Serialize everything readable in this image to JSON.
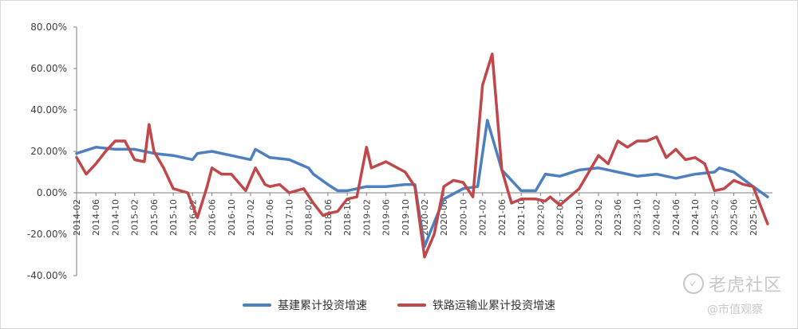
{
  "chart_data": {
    "type": "line",
    "title": "",
    "ylim": [
      -40,
      80
    ],
    "yticks": [
      -40,
      -20,
      0,
      20,
      40,
      60,
      80
    ],
    "ytick_labels": [
      "-40.00%",
      "-20.00%",
      "0.00%",
      "20.00%",
      "40.00%",
      "60.00%",
      "80.00%"
    ],
    "grid": false,
    "legend_position": "bottom",
    "x_start": "2014-02",
    "x_end": "2026-02",
    "x_tick_labels": [
      "2014-02",
      "2014-06",
      "2014-10",
      "2015-02",
      "2015-06",
      "2015-10",
      "2016-02",
      "2016-06",
      "2016-10",
      "2017-02",
      "2017-06",
      "2017-10",
      "2018-02",
      "2018-06",
      "2018-10",
      "2019-02",
      "2019-06",
      "2019-10",
      "2020-02",
      "2020-06",
      "2020-10",
      "2021-02",
      "2021-06",
      "2021-10",
      "2022-02",
      "2022-06",
      "2022-10",
      "2023-02",
      "2023-06",
      "2023-10",
      "2024-02",
      "2024-06",
      "2024-10",
      "2025-02",
      "2025-06",
      "2025-10"
    ],
    "series": [
      {
        "name": "基建累计投资增速",
        "color": "#4e7fbf",
        "points": [
          [
            "2014-02",
            19
          ],
          [
            "2014-06",
            22
          ],
          [
            "2014-10",
            21
          ],
          [
            "2015-02",
            21
          ],
          [
            "2015-06",
            19
          ],
          [
            "2015-10",
            18
          ],
          [
            "2016-02",
            16
          ],
          [
            "2016-03",
            19
          ],
          [
            "2016-06",
            20
          ],
          [
            "2016-10",
            18
          ],
          [
            "2017-02",
            16
          ],
          [
            "2017-03",
            21
          ],
          [
            "2017-06",
            17
          ],
          [
            "2017-10",
            16
          ],
          [
            "2018-02",
            12
          ],
          [
            "2018-03",
            9
          ],
          [
            "2018-06",
            4
          ],
          [
            "2018-08",
            1
          ],
          [
            "2018-10",
            1
          ],
          [
            "2019-02",
            3
          ],
          [
            "2019-06",
            3
          ],
          [
            "2019-10",
            4
          ],
          [
            "2019-12",
            4
          ],
          [
            "2020-02",
            -26
          ],
          [
            "2020-03",
            -20
          ],
          [
            "2020-06",
            -3
          ],
          [
            "2020-10",
            2
          ],
          [
            "2021-01",
            3
          ],
          [
            "2021-03",
            35
          ],
          [
            "2021-06",
            11
          ],
          [
            "2021-10",
            1
          ],
          [
            "2022-01",
            1
          ],
          [
            "2022-03",
            9
          ],
          [
            "2022-06",
            8
          ],
          [
            "2022-10",
            11
          ],
          [
            "2023-02",
            12
          ],
          [
            "2023-06",
            10
          ],
          [
            "2023-10",
            8
          ],
          [
            "2024-02",
            9
          ],
          [
            "2024-06",
            7
          ],
          [
            "2024-10",
            9
          ],
          [
            "2025-02",
            10
          ],
          [
            "2025-03",
            12
          ],
          [
            "2025-06",
            10
          ],
          [
            "2025-10",
            3
          ],
          [
            "2026-01",
            -2
          ]
        ]
      },
      {
        "name": "铁路运输业累计投资增速",
        "color": "#c0474a",
        "points": [
          [
            "2014-02",
            17
          ],
          [
            "2014-04",
            9
          ],
          [
            "2014-06",
            14
          ],
          [
            "2014-08",
            20
          ],
          [
            "2014-10",
            25
          ],
          [
            "2014-12",
            25
          ],
          [
            "2015-02",
            16
          ],
          [
            "2015-04",
            15
          ],
          [
            "2015-05",
            33
          ],
          [
            "2015-06",
            20
          ],
          [
            "2015-08",
            12
          ],
          [
            "2015-10",
            2
          ],
          [
            "2016-01",
            0
          ],
          [
            "2016-03",
            -12
          ],
          [
            "2016-05",
            3
          ],
          [
            "2016-06",
            12
          ],
          [
            "2016-08",
            9
          ],
          [
            "2016-10",
            9
          ],
          [
            "2017-01",
            1
          ],
          [
            "2017-03",
            12
          ],
          [
            "2017-05",
            4
          ],
          [
            "2017-06",
            3
          ],
          [
            "2017-08",
            4
          ],
          [
            "2017-10",
            0
          ],
          [
            "2018-01",
            2
          ],
          [
            "2018-03",
            -5
          ],
          [
            "2018-05",
            -11
          ],
          [
            "2018-06",
            -10
          ],
          [
            "2018-08",
            -9
          ],
          [
            "2018-10",
            -3
          ],
          [
            "2018-12",
            -2
          ],
          [
            "2019-02",
            22
          ],
          [
            "2019-03",
            12
          ],
          [
            "2019-06",
            15
          ],
          [
            "2019-10",
            10
          ],
          [
            "2019-12",
            3
          ],
          [
            "2020-02",
            -31
          ],
          [
            "2020-04",
            -20
          ],
          [
            "2020-06",
            3
          ],
          [
            "2020-08",
            6
          ],
          [
            "2020-10",
            5
          ],
          [
            "2020-12",
            -2
          ],
          [
            "2021-02",
            52
          ],
          [
            "2021-04",
            67
          ],
          [
            "2021-06",
            11
          ],
          [
            "2021-08",
            -5
          ],
          [
            "2021-10",
            -3
          ],
          [
            "2022-01",
            -3
          ],
          [
            "2022-03",
            -4
          ],
          [
            "2022-04",
            -2
          ],
          [
            "2022-06",
            -6
          ],
          [
            "2022-08",
            -2
          ],
          [
            "2022-10",
            2
          ],
          [
            "2022-12",
            10
          ],
          [
            "2023-02",
            18
          ],
          [
            "2023-04",
            14
          ],
          [
            "2023-06",
            25
          ],
          [
            "2023-08",
            22
          ],
          [
            "2023-10",
            25
          ],
          [
            "2023-12",
            25
          ],
          [
            "2024-02",
            27
          ],
          [
            "2024-04",
            17
          ],
          [
            "2024-06",
            21
          ],
          [
            "2024-08",
            16
          ],
          [
            "2024-10",
            17
          ],
          [
            "2024-12",
            14
          ],
          [
            "2025-02",
            1
          ],
          [
            "2025-04",
            2
          ],
          [
            "2025-06",
            6
          ],
          [
            "2025-08",
            4
          ],
          [
            "2025-10",
            3
          ],
          [
            "2026-01",
            -15
          ]
        ]
      }
    ]
  },
  "watermark": {
    "logo": "✓",
    "name": "老虎社区",
    "sub": "@市值观察"
  }
}
